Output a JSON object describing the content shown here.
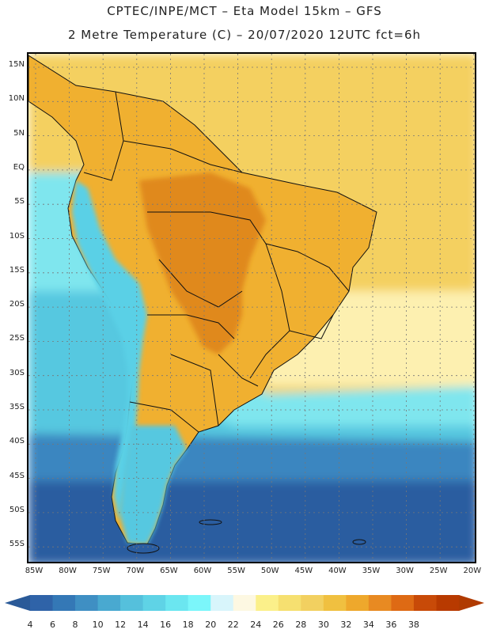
{
  "header": {
    "line1": "CPTEC/INPE/MCT –  Eta Model 15km – GFS",
    "line2": "2 Metre Temperature (C) – 20/07/2020 12UTC fct=6h"
  },
  "map": {
    "variable": "2 Metre Temperature",
    "units": "C",
    "lat_ticks": [
      "15N",
      "10N",
      "5N",
      "EQ",
      "5S",
      "10S",
      "15S",
      "20S",
      "25S",
      "30S",
      "35S",
      "40S",
      "45S",
      "50S",
      "55S"
    ],
    "lon_ticks": [
      "85W",
      "80W",
      "75W",
      "70W",
      "65W",
      "60W",
      "55W",
      "50W",
      "45W",
      "40W",
      "35W",
      "30W",
      "25W",
      "20W"
    ],
    "colors": {
      "ocean_cold": "#2a5da0",
      "ocean_cool": "#3a86c0",
      "ocean_mild": "#56c8e0",
      "ocean_warm": "#7fe6ee",
      "atlantic_trop": "#f4d060",
      "atlantic_pale": "#fdf0b0",
      "land_hot": "#e0891e",
      "land_warm": "#f0b030",
      "andes": "#5ad0e6",
      "border": "#111111"
    }
  },
  "colorbar": {
    "labels": [
      "4",
      "6",
      "8",
      "10",
      "12",
      "14",
      "16",
      "18",
      "20",
      "22",
      "24",
      "26",
      "28",
      "30",
      "32",
      "34",
      "36",
      "38"
    ],
    "colors": [
      "#2f63a8",
      "#3478b6",
      "#3f8fc3",
      "#49a9d0",
      "#55c0dc",
      "#5fd3e6",
      "#6be6f0",
      "#7bf6fa",
      "#d8f5fb",
      "#fdf8e2",
      "#fbf08a",
      "#f6e070",
      "#f2d060",
      "#f0c040",
      "#eea82c",
      "#e88a22",
      "#de6a14",
      "#c84a08",
      "#b83a00"
    ],
    "low_arrow_color": "#2a5a98",
    "high_arrow_color": "#b03a00"
  }
}
